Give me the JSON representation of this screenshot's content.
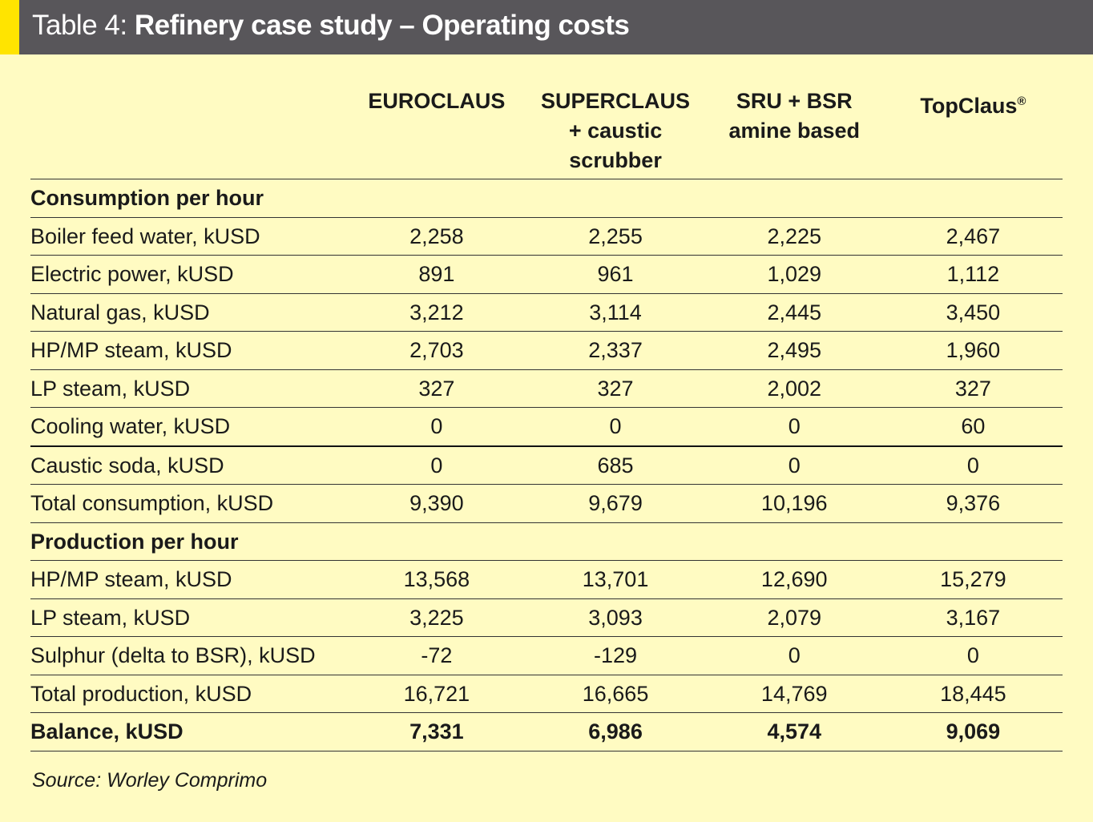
{
  "title": {
    "prefix": "Table 4:",
    "main": "Refinery case study – Operating costs"
  },
  "columns": [
    {
      "line1": "EUROCLAUS",
      "line2": "",
      "line3": ""
    },
    {
      "line1": "SUPERCLAUS",
      "line2": "+ caustic",
      "line3": "scrubber"
    },
    {
      "line1": "SRU + BSR",
      "line2": "amine based",
      "line3": ""
    },
    {
      "line1": "TopClaus",
      "sup": "®",
      "line2": "",
      "line3": ""
    }
  ],
  "sections": {
    "consumption": "Consumption per hour",
    "production": "Production per hour"
  },
  "rows": [
    {
      "label": "Boiler feed water, kUSD",
      "values": [
        "2,258",
        "2,255",
        "2,225",
        "2,467"
      ]
    },
    {
      "label": "Electric power, kUSD",
      "values": [
        "891",
        "961",
        "1,029",
        "1,112"
      ]
    },
    {
      "label": "Natural gas, kUSD",
      "values": [
        "3,212",
        "3,114",
        "2,445",
        "3,450"
      ]
    },
    {
      "label": "HP/MP steam, kUSD",
      "values": [
        "2,703",
        "2,337",
        "2,495",
        "1,960"
      ]
    },
    {
      "label": "LP steam, kUSD",
      "values": [
        "327",
        "327",
        "2,002",
        "327"
      ]
    },
    {
      "label": "Cooling water, kUSD",
      "values": [
        "0",
        "0",
        "0",
        "60"
      ]
    },
    {
      "label": "Caustic soda, kUSD",
      "values": [
        "0",
        "685",
        "0",
        "0"
      ]
    },
    {
      "label": "Total consumption, kUSD",
      "values": [
        "9,390",
        "9,679",
        "10,196",
        "9,376"
      ]
    },
    {
      "label": "HP/MP steam, kUSD",
      "values": [
        "13,568",
        "13,701",
        "12,690",
        "15,279"
      ]
    },
    {
      "label": "LP steam, kUSD",
      "values": [
        "3,225",
        "3,093",
        "2,079",
        "3,167"
      ]
    },
    {
      "label": "Sulphur (delta to BSR), kUSD",
      "values": [
        "-72",
        "-129",
        "0",
        "0"
      ]
    },
    {
      "label": "Total production, kUSD",
      "values": [
        "16,721",
        "16,665",
        "14,769",
        "18,445"
      ]
    },
    {
      "label": "Balance, kUSD",
      "values": [
        "7,331",
        "6,986",
        "4,574",
        "9,069"
      ]
    }
  ],
  "source": "Source: Worley Comprimo",
  "colors": {
    "header_bg": "#58565a",
    "accent": "#ffe400",
    "page_bg": "#fffbc2"
  }
}
